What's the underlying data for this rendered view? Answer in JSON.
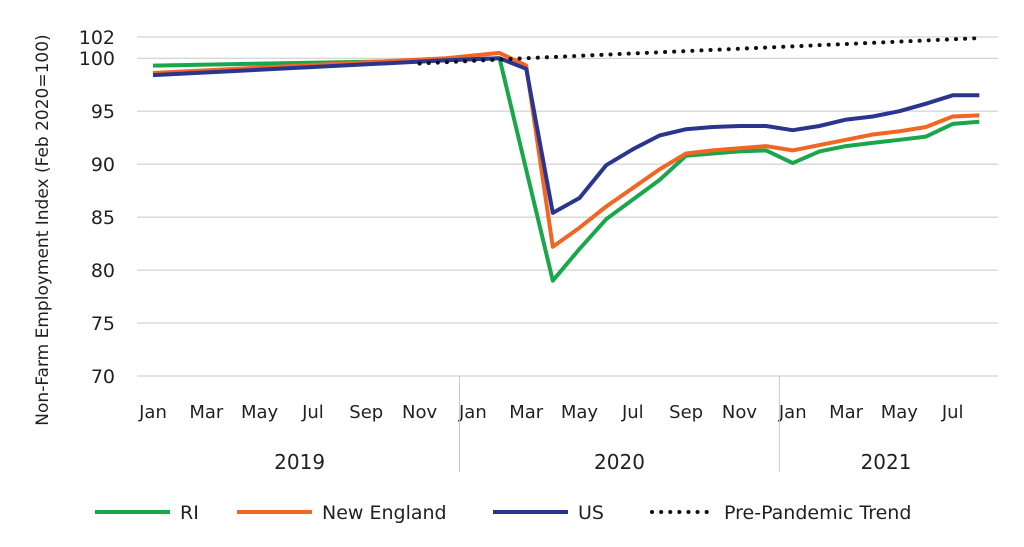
{
  "chart_data": {
    "type": "line",
    "title": "",
    "ylabel": "Non-Farm Employment Index (Feb 2020=100)",
    "xlabel": "",
    "ylim": [
      70,
      102
    ],
    "yticks": [
      70,
      75,
      80,
      85,
      90,
      95,
      100,
      102
    ],
    "grid": "horizontal",
    "legend": "bottom",
    "x_tick_labels": [
      "Jan",
      "Mar",
      "May",
      "Jul",
      "Sep",
      "Nov",
      "Jan",
      "Mar",
      "May",
      "Jul",
      "Sep",
      "Nov",
      "Jan",
      "Mar",
      "May",
      "Jul"
    ],
    "x_tick_months": [
      0,
      2,
      4,
      6,
      8,
      10,
      12,
      14,
      16,
      18,
      20,
      22,
      24,
      26,
      28,
      30
    ],
    "x_month_range": [
      -0.6,
      31.7
    ],
    "years": [
      {
        "label": "2019",
        "start": 0,
        "end": 11
      },
      {
        "label": "2020",
        "start": 12,
        "end": 23
      },
      {
        "label": "2021",
        "start": 24,
        "end": 31
      }
    ],
    "series": [
      {
        "name": "RI",
        "color": "#1aa64a",
        "style": "solid",
        "x": [
          0,
          11,
          13,
          15,
          16,
          17,
          19,
          20,
          21,
          22,
          23,
          24,
          25,
          26,
          27,
          28,
          29,
          30,
          31
        ],
        "y": [
          99.3,
          99.8,
          100.0,
          79.0,
          82.0,
          84.8,
          88.5,
          90.8,
          91.0,
          91.2,
          91.3,
          90.1,
          91.2,
          91.7,
          92.0,
          92.3,
          92.6,
          93.8,
          94.0
        ]
      },
      {
        "name": "New England",
        "color": "#f26522",
        "style": "solid",
        "x": [
          0,
          11,
          13,
          14,
          15,
          16,
          17,
          19,
          20,
          21,
          22,
          23,
          24,
          25,
          26,
          27,
          28,
          29,
          30,
          31
        ],
        "y": [
          98.6,
          100.0,
          100.5,
          99.3,
          82.2,
          84.0,
          86.0,
          89.5,
          91.0,
          91.3,
          91.5,
          91.7,
          91.3,
          91.8,
          92.3,
          92.8,
          93.1,
          93.5,
          94.5,
          94.6
        ]
      },
      {
        "name": "US",
        "color": "#2a3590",
        "style": "solid",
        "x": [
          0,
          11,
          13,
          14,
          15,
          16,
          17,
          18,
          19,
          20,
          21,
          22,
          23,
          24,
          25,
          26,
          27,
          28,
          29,
          30,
          31
        ],
        "y": [
          98.4,
          99.8,
          100.0,
          99.0,
          85.4,
          86.8,
          89.9,
          91.4,
          92.7,
          93.3,
          93.5,
          93.6,
          93.6,
          93.2,
          93.6,
          94.2,
          94.5,
          95.0,
          95.7,
          96.5,
          96.5
        ]
      },
      {
        "name": "Pre-Pandemic Trend",
        "color": "#111111",
        "style": "dotted",
        "x": [
          10,
          14,
          31
        ],
        "y": [
          99.5,
          100.0,
          101.9
        ]
      }
    ]
  }
}
